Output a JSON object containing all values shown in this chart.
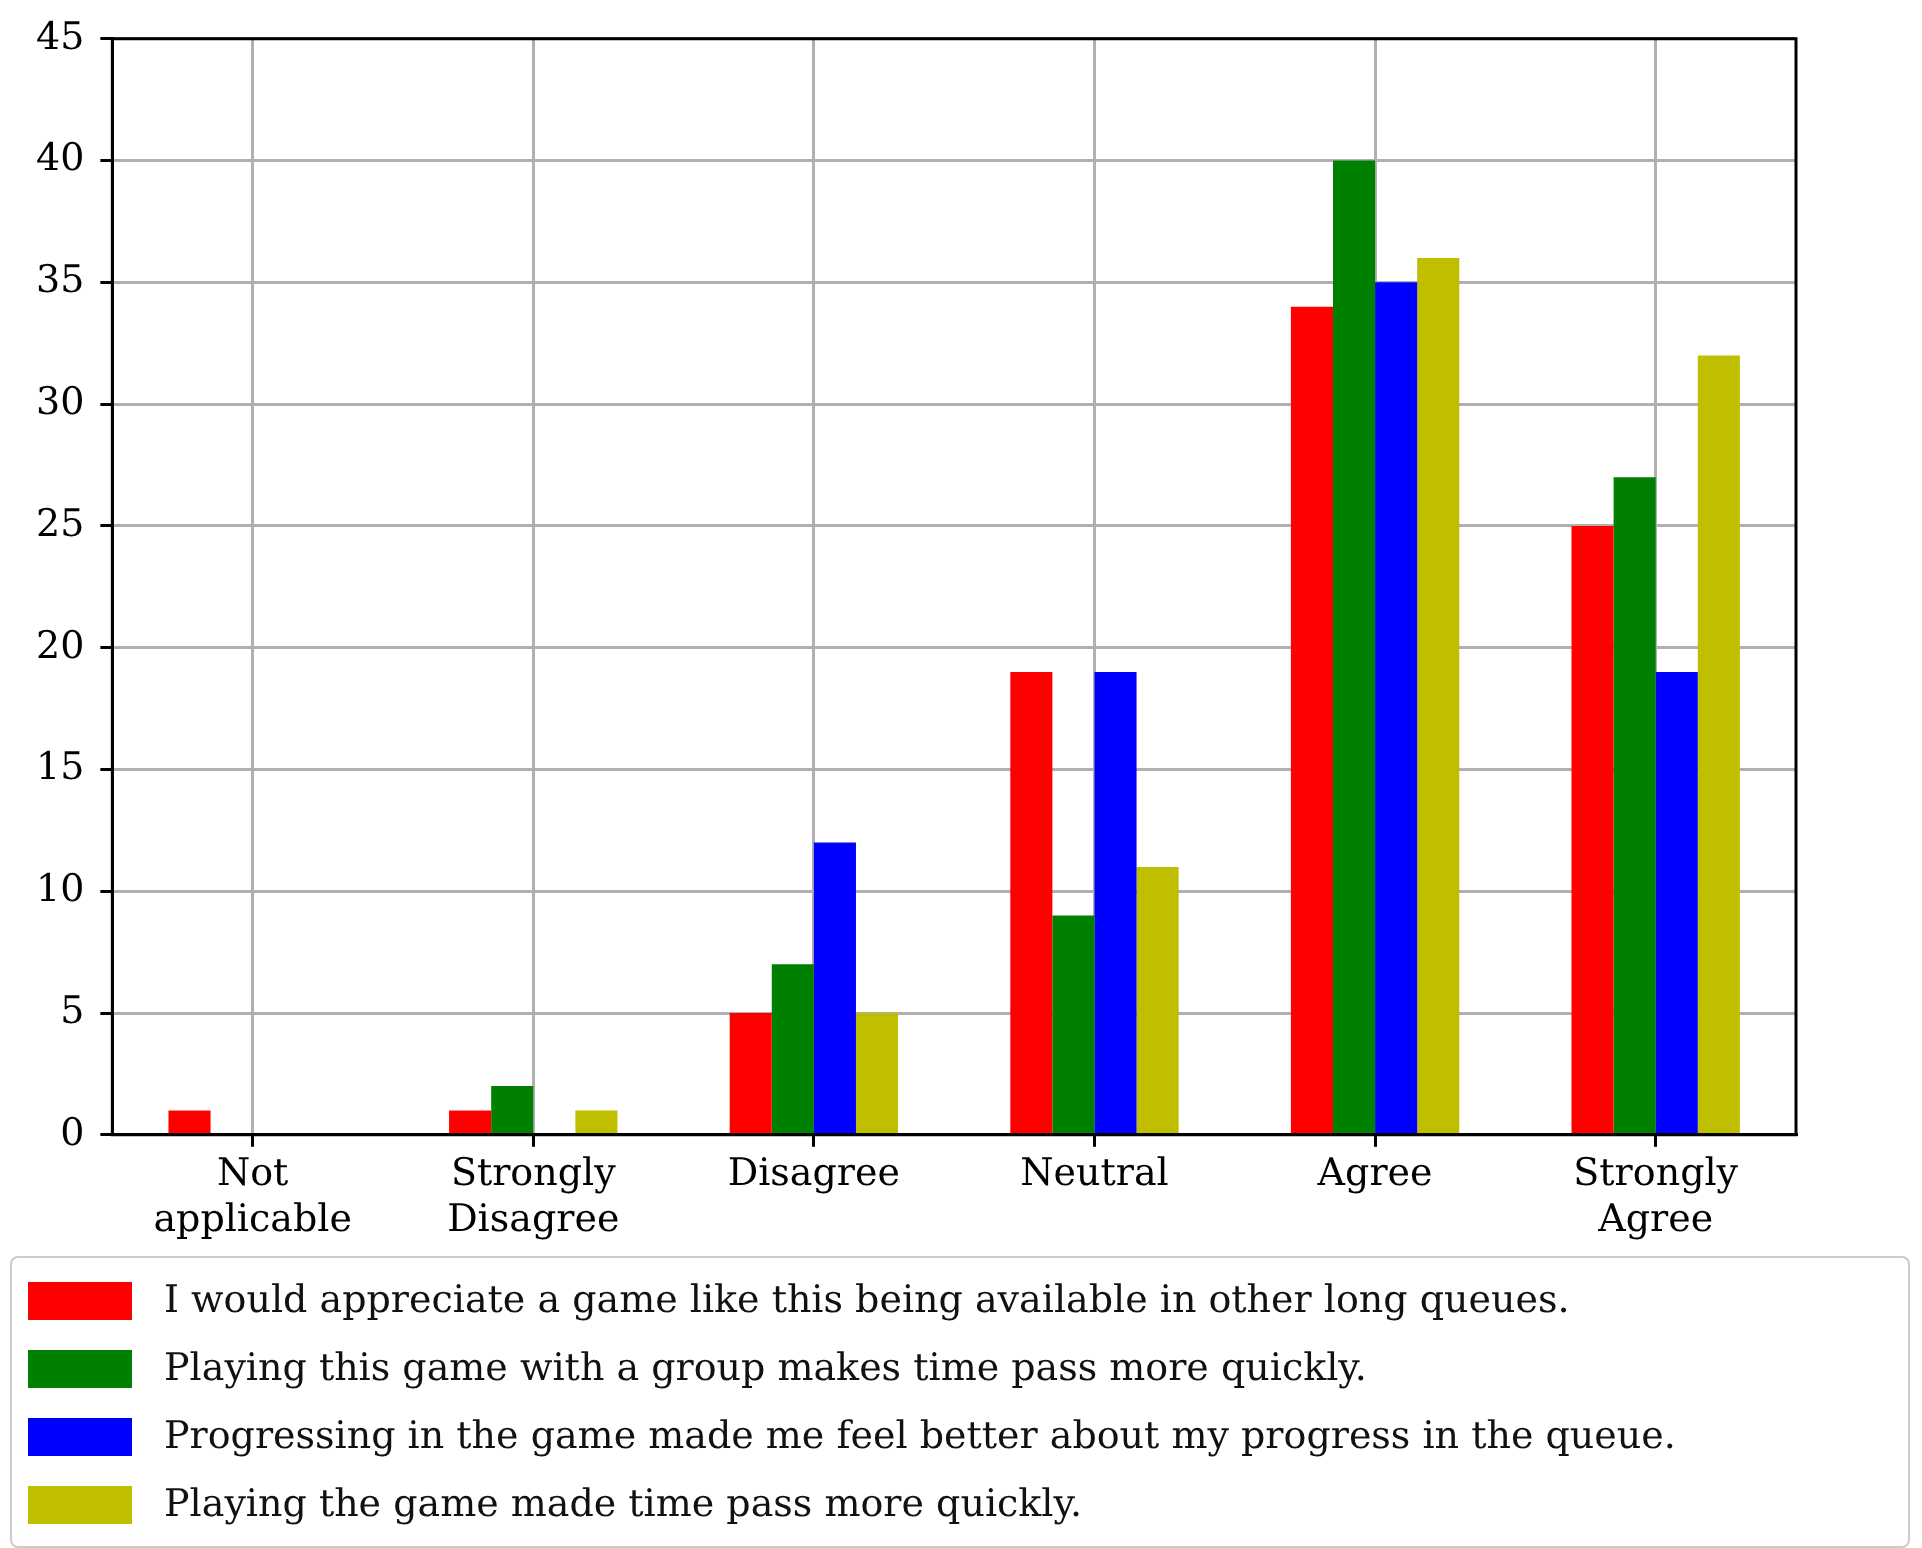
{
  "chart_data": {
    "type": "bar",
    "categories": [
      "Not applicable",
      "Strongly Disagree",
      "Disagree",
      "Neutral",
      "Agree",
      "Strongly Agree"
    ],
    "series": [
      {
        "name": "I would appreciate a game like this being available in other long queues.",
        "color": "#ff0000",
        "values": [
          1,
          1,
          5,
          19,
          34,
          25
        ]
      },
      {
        "name": "Playing this game with a group makes time pass more quickly.",
        "color": "#008000",
        "values": [
          0,
          2,
          7,
          9,
          40,
          27
        ]
      },
      {
        "name": "Progressing in the game made me feel better about my progress in the queue.",
        "color": "#0000ff",
        "values": [
          0,
          0,
          12,
          19,
          35,
          19
        ]
      },
      {
        "name": "Playing the game made time pass more quickly.",
        "color": "#bfbf00",
        "values": [
          0,
          1,
          5,
          11,
          36,
          32
        ]
      }
    ],
    "ylim": [
      0,
      45
    ],
    "yticks": [
      0,
      5,
      10,
      15,
      20,
      25,
      30,
      35,
      40,
      45
    ],
    "grid": true,
    "legend": "bottom"
  }
}
